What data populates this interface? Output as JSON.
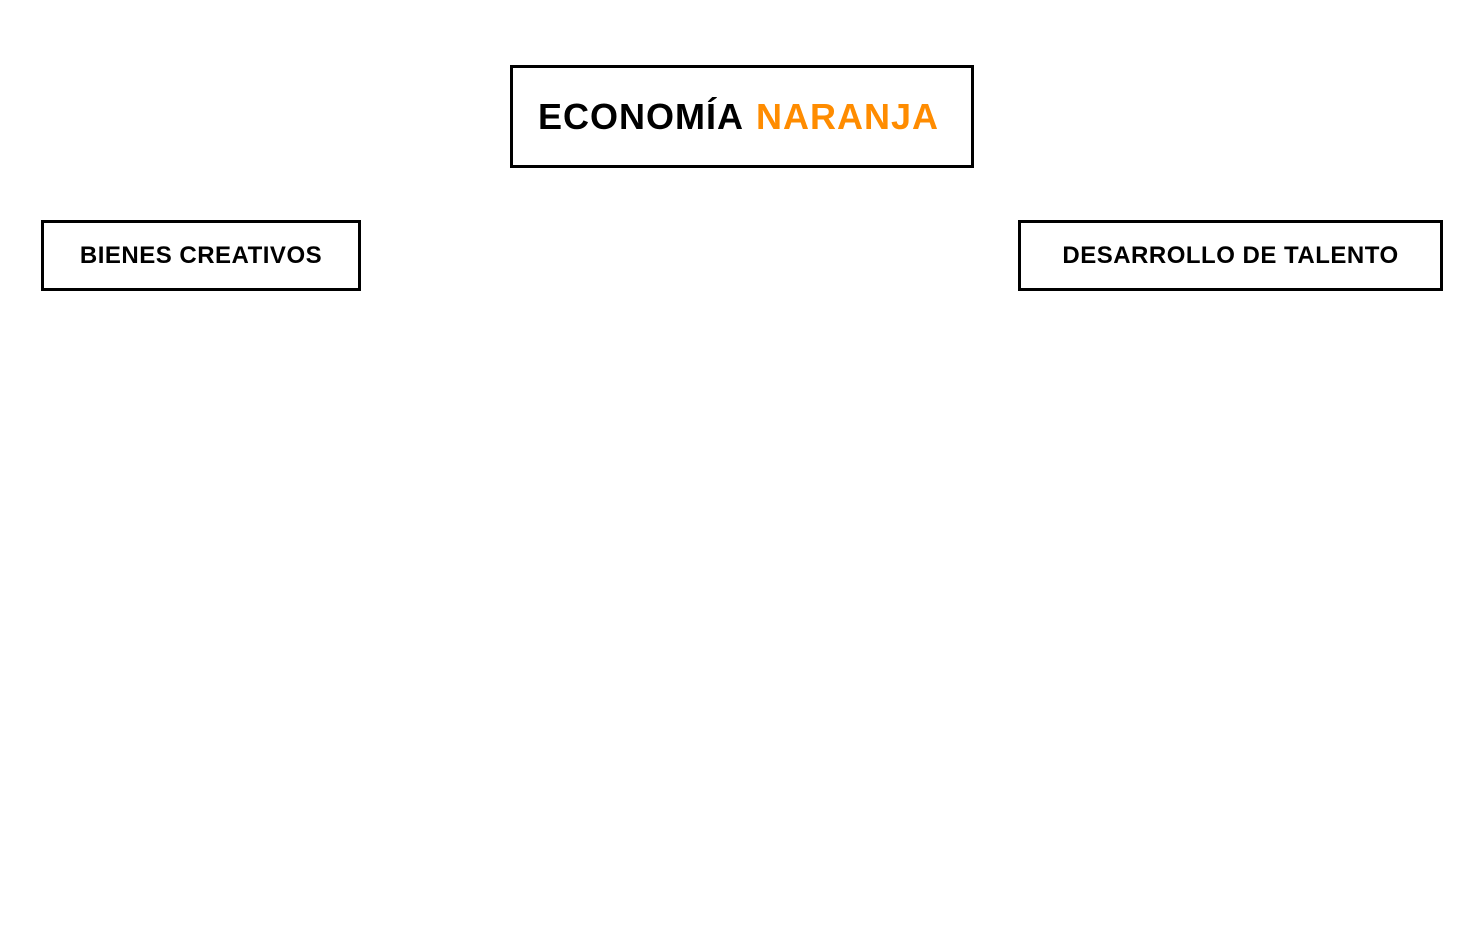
{
  "title": {
    "part1": "ECONOMÍA",
    "part2": "NARANJA",
    "part2_color": "#FF8C00"
  },
  "nodes": {
    "left": "BIENES CREATIVOS",
    "right": "DESARROLLO DE TALENTO"
  }
}
